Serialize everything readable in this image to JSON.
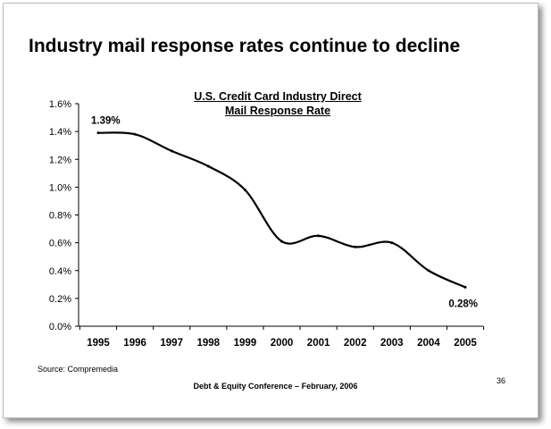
{
  "slide": {
    "title": "Industry mail response rates continue to decline",
    "source": "Source: Compremedia",
    "footer": "Debt & Equity Conference – February, 2006",
    "page_number": "36"
  },
  "chart_data": {
    "type": "line",
    "title_line1": "U.S. Credit Card Industry Direct",
    "title_line2": "Mail Response Rate",
    "xlabel": "",
    "ylabel": "",
    "categories": [
      "1995",
      "1996",
      "1997",
      "1998",
      "1999",
      "2000",
      "2001",
      "2002",
      "2003",
      "2004",
      "2005"
    ],
    "x": [
      1995,
      1996,
      1997,
      1998,
      1999,
      2000,
      2001,
      2002,
      2003,
      2004,
      2005
    ],
    "series": [
      {
        "name": "Direct Mail Response Rate",
        "values": [
          1.39,
          1.38,
          1.26,
          1.15,
          0.98,
          0.61,
          0.65,
          0.57,
          0.6,
          0.4,
          0.28
        ]
      }
    ],
    "ylim": [
      0,
      1.6
    ],
    "yticks": [
      "0.0%",
      "0.2%",
      "0.4%",
      "0.6%",
      "0.8%",
      "1.0%",
      "1.2%",
      "1.4%",
      "1.6%"
    ],
    "annotations": [
      {
        "text": "1.39%",
        "year": 1995,
        "value": 1.39
      },
      {
        "text": "0.28%",
        "year": 2005,
        "value": 0.28
      }
    ],
    "line_color": "#000000",
    "grid": false
  }
}
